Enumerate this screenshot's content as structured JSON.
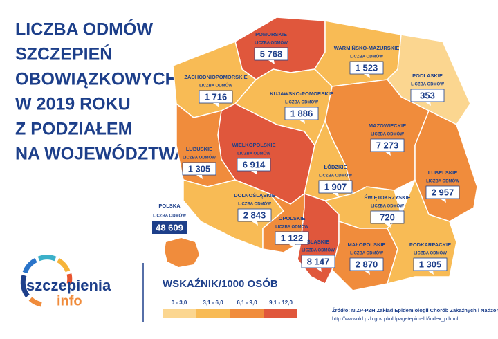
{
  "title": [
    "LICZBA ODMÓW",
    "SZCZEPIEŃ",
    "OBOWIĄZKOWYCH",
    "W 2019 ROKU",
    "Z PODZIAŁEM",
    "NA WOJEWÓDZTWA"
  ],
  "poland": {
    "name": "POLSKA",
    "label": "LICZBA ODMÓW",
    "value": "48 609",
    "color": "#f08c3c"
  },
  "regions": [
    {
      "name": "POMORSKIE",
      "label": "LICZBA ODMÓW",
      "value": "5 768",
      "color": "#e0573c"
    },
    {
      "name": "ZACHODNIOPOMORSKIE",
      "label": "LICZBA ODMÓW",
      "value": "1 716",
      "color": "#f8bb55"
    },
    {
      "name": "WARMIŃSKO-MAZURSKIE",
      "label": "LICZBA ODMÓW",
      "value": "1 523",
      "color": "#f8bb55"
    },
    {
      "name": "PODLASKIE",
      "label": "LICZBA ODMÓW",
      "value": "353",
      "color": "#fbd690"
    },
    {
      "name": "KUJAWSKO-POMORSKIE",
      "label": "LICZBA ODMÓW",
      "value": "1 886",
      "color": "#f8bb55"
    },
    {
      "name": "WIELKOPOLSKIE",
      "label": "LICZBA ODMÓW",
      "value": "6 914",
      "color": "#e0573c"
    },
    {
      "name": "LUBUSKIE",
      "label": "LICZBA ODMÓW",
      "value": "1 305",
      "color": "#f08c3c"
    },
    {
      "name": "MAZOWIECKIE",
      "label": "LICZBA ODMÓW",
      "value": "7 273",
      "color": "#f08c3c"
    },
    {
      "name": "ŁÓDZKIE",
      "label": "LICZBA ODMÓW",
      "value": "1 907",
      "color": "#f8bb55"
    },
    {
      "name": "LUBELSKIE",
      "label": "LICZBA ODMÓW",
      "value": "2 957",
      "color": "#f08c3c"
    },
    {
      "name": "DOLNOŚLĄSKIE",
      "label": "LICZBA ODMÓW",
      "value": "2 843",
      "color": "#f8bb55"
    },
    {
      "name": "OPOLSKIE",
      "label": "LICZBA ODMÓW",
      "value": "1 122",
      "color": "#f08c3c"
    },
    {
      "name": "ŚLĄSKIE",
      "label": "LICZBA ODMÓW",
      "value": "8 147",
      "color": "#e0573c"
    },
    {
      "name": "ŚWIĘTOKRZYSKIE",
      "label": "LICZBA ODMÓW",
      "value": "720",
      "color": "#f8bb55"
    },
    {
      "name": "MAŁOPOLSKIE",
      "label": "LICZBA ODMÓW",
      "value": "2 870",
      "color": "#f08c3c"
    },
    {
      "name": "PODKARPACKIE",
      "label": "LICZBA ODMÓW",
      "value": "1 305",
      "color": "#f8bb55"
    }
  ],
  "legend": {
    "title": "WSKAŹNIK/1000 OSÓB",
    "items": [
      {
        "label": "0 - 3,0",
        "color": "#fbd690"
      },
      {
        "label": "3,1 - 6,0",
        "color": "#f8bb55"
      },
      {
        "label": "6,1 - 9,0",
        "color": "#f08c3c"
      },
      {
        "label": "9,1 - 12,0",
        "color": "#e0573c"
      }
    ]
  },
  "logo": {
    "main": "szczepienia",
    "sub": "info"
  },
  "source": [
    "Źródło: NIZP-PZH Zakład Epidemiologii Chorób Zakaźnych i Nadzoru",
    "http://wwwold.pzh.gov.pl/oldpage/epimeld/index_p.html"
  ]
}
